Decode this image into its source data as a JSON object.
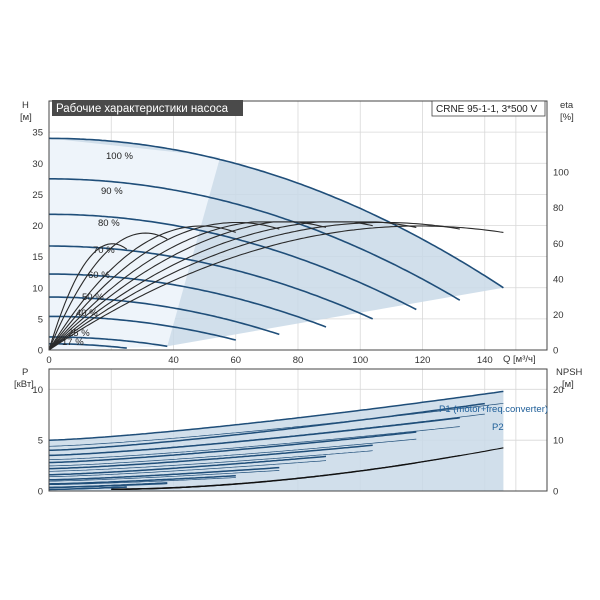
{
  "header": {
    "title": "Рабочие характеристики насоса",
    "model": "CRNE 95-1-1, 3*500 V"
  },
  "colors": {
    "curve": "#1f4e79",
    "region": "#c9d9e8",
    "grid": "#d8d8d8",
    "title_bg": "#4a4a4a",
    "label_blue": "#1f5f99",
    "eff_curve": "#2a2a2a"
  },
  "chart_data": [
    {
      "type": "line",
      "title": "Рабочие характеристики насоса",
      "xlabel": "Q [м³/ч]",
      "ylabel": "H [м]",
      "y2label": "eta [%]",
      "xlim": [
        0,
        160
      ],
      "ylim": [
        0,
        40
      ],
      "y2lim": [
        0,
        140
      ],
      "x_ticks": [
        0,
        20,
        40,
        60,
        80,
        100,
        120,
        140
      ],
      "x_tick_labels": [
        "0",
        "",
        "40",
        "60",
        "80",
        "100",
        "120",
        "140"
      ],
      "y_ticks": [
        0,
        5,
        10,
        15,
        20,
        25,
        30,
        35
      ],
      "y2_ticks": [
        0,
        20,
        40,
        60,
        80,
        100
      ],
      "grid": true,
      "speed_curves": [
        {
          "label": "100 %",
          "h0": 34,
          "qmax": 146,
          "hend": 10,
          "eff_end": 52
        },
        {
          "label": "90 %",
          "h0": 27.5,
          "qmax": 132,
          "hend": 8,
          "eff_end": 54
        },
        {
          "label": "80 %",
          "h0": 21.8,
          "qmax": 118,
          "hend": 6.5,
          "eff_end": 55
        },
        {
          "label": "70 %",
          "h0": 16.7,
          "qmax": 104,
          "hend": 5,
          "eff_end": 56
        },
        {
          "label": "60 %",
          "h0": 12.2,
          "qmax": 89,
          "hend": 3.7,
          "eff_end": 55
        },
        {
          "label": "50 %",
          "h0": 8.5,
          "qmax": 74,
          "hend": 2.5,
          "eff_end": 54
        },
        {
          "label": "40 %",
          "h0": 5.4,
          "qmax": 60,
          "hend": 1.6,
          "eff_end": 52
        },
        {
          "label": "25 %",
          "h0": 2.1,
          "qmax": 38,
          "hend": 0.6,
          "eff_end": 48
        },
        {
          "label": "17 %",
          "h0": 1.0,
          "qmax": 25,
          "hend": 0.3,
          "eff_end": 42
        }
      ],
      "operating_region": [
        [
          0,
          0
        ],
        [
          0,
          34
        ],
        [
          55,
          31
        ],
        [
          146,
          10
        ],
        [
          38,
          0.6
        ]
      ]
    },
    {
      "type": "line",
      "xlabel": "",
      "ylabel": "P [кВт]",
      "y2label": "NPSH [м]",
      "xlim": [
        0,
        160
      ],
      "ylim": [
        0,
        12
      ],
      "y2lim": [
        0,
        24
      ],
      "y_ticks": [
        0,
        5,
        10
      ],
      "y2_ticks": [
        0,
        10,
        20
      ],
      "grid": true,
      "power_curves": [
        {
          "p0": 5.0,
          "pend": 9.8,
          "qmax": 146
        },
        {
          "p0": 4.0,
          "pend": 8.6,
          "qmax": 140
        },
        {
          "p0": 3.5,
          "pend": 7.2,
          "qmax": 132
        },
        {
          "p0": 2.8,
          "pend": 5.8,
          "qmax": 118
        },
        {
          "p0": 2.2,
          "pend": 4.5,
          "qmax": 104
        },
        {
          "p0": 1.6,
          "pend": 3.4,
          "qmax": 89
        },
        {
          "p0": 1.1,
          "pend": 2.3,
          "qmax": 74
        },
        {
          "p0": 0.7,
          "pend": 1.5,
          "qmax": 60
        },
        {
          "p0": 0.35,
          "pend": 0.8,
          "qmax": 38
        },
        {
          "p0": 0.15,
          "pend": 0.4,
          "qmax": 25
        }
      ],
      "npsh_curves": [
        {
          "qstart": 20,
          "qend": 146,
          "start": 0.4,
          "end": 8.5
        },
        {
          "qstart": 20,
          "qend": 132,
          "start": 0.3,
          "end": 7.0
        },
        {
          "qstart": 20,
          "qend": 118,
          "start": 0.3,
          "end": 5.5
        }
      ],
      "series_labels": [
        "P1 (motor+freq.converter)",
        "P2"
      ]
    }
  ]
}
